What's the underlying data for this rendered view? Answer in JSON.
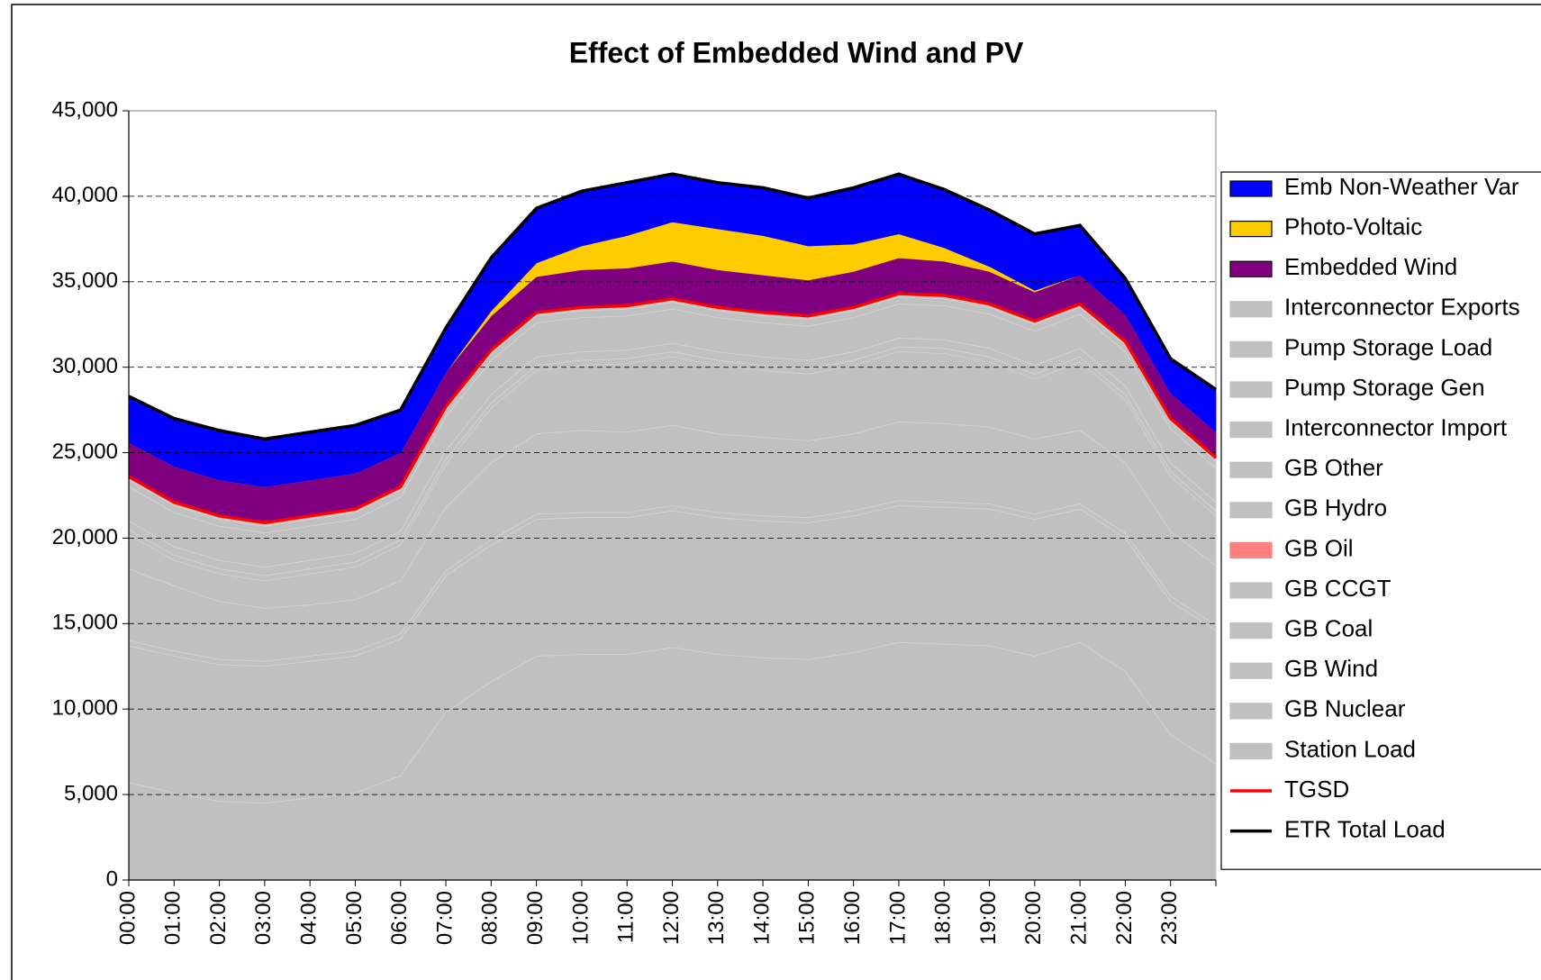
{
  "chart_data": {
    "type": "area",
    "title": "Effect of Embedded Wind and PV",
    "categories": [
      "00:00",
      "01:00",
      "02:00",
      "03:00",
      "04:00",
      "05:00",
      "06:00",
      "07:00",
      "08:00",
      "09:00",
      "10:00",
      "11:00",
      "12:00",
      "13:00",
      "14:00",
      "15:00",
      "16:00",
      "17:00",
      "18:00",
      "19:00",
      "20:00",
      "21:00",
      "22:00",
      "23:00",
      null
    ],
    "ylim": [
      0,
      45000
    ],
    "yticks": [
      0,
      {
        "value": 5000,
        "label": "5,000"
      },
      {
        "value": 10000,
        "label": "10,000"
      },
      {
        "value": 15000,
        "label": "15,000"
      },
      {
        "value": 20000,
        "label": "20,000"
      },
      {
        "value": 25000,
        "label": "25,000"
      },
      {
        "value": 30000,
        "label": "30,000"
      },
      {
        "value": 35000,
        "label": "35,000"
      },
      {
        "value": 40000,
        "label": "40,000"
      },
      {
        "value": 45000,
        "label": "45,000"
      }
    ],
    "grid": true,
    "legend": "right",
    "series": [
      {
        "name": "Emb Non-Weather Var",
        "type": "area",
        "color": "#0000ff",
        "values": [
          2700,
          2800,
          2900,
          2800,
          2800,
          2800,
          2500,
          2600,
          3100,
          3200,
          3200,
          3100,
          2800,
          2700,
          2800,
          2800,
          3300,
          3500,
          3400,
          3300,
          3300,
          2900,
          2100,
          2000,
          2500
        ]
      },
      {
        "name": "Photo-Voltaic",
        "type": "area",
        "color": "#ffcc00",
        "values": [
          0,
          0,
          0,
          0,
          0,
          0,
          0,
          0,
          300,
          800,
          1400,
          1900,
          2300,
          2400,
          2300,
          2000,
          1600,
          1400,
          800,
          300,
          100,
          0,
          0,
          0,
          0
        ]
      },
      {
        "name": "Embedded Wind",
        "type": "area",
        "color": "#800080",
        "values": [
          2000,
          2100,
          2100,
          2100,
          2100,
          2100,
          2000,
          2000,
          2000,
          2100,
          2200,
          2200,
          2200,
          2200,
          2200,
          2100,
          2100,
          2100,
          2000,
          1900,
          1700,
          1700,
          1600,
          1500,
          1500
        ]
      },
      {
        "name": "Interconnector Exports",
        "type": "area",
        "color": "#c0c0c0",
        "values": [
          0,
          0,
          0,
          0,
          0,
          0,
          0,
          0,
          0,
          0,
          0,
          0,
          0,
          0,
          0,
          0,
          0,
          0,
          0,
          0,
          0,
          0,
          0,
          0,
          0
        ]
      },
      {
        "name": "Pump Storage Load",
        "type": "area",
        "color": "#c0c0c0",
        "values": [
          200,
          200,
          200,
          200,
          200,
          200,
          200,
          200,
          200,
          200,
          200,
          200,
          200,
          200,
          200,
          200,
          200,
          200,
          200,
          200,
          200,
          200,
          200,
          200,
          200
        ]
      },
      {
        "name": "Pump Storage Gen",
        "type": "area",
        "color": "#c0c0c0",
        "values": [
          400,
          400,
          400,
          400,
          400,
          400,
          400,
          400,
          400,
          400,
          400,
          400,
          400,
          400,
          400,
          400,
          400,
          400,
          400,
          400,
          400,
          400,
          400,
          400,
          400
        ]
      },
      {
        "name": "Interconnector Import",
        "type": "area",
        "color": "#c0c0c0",
        "values": [
          2000,
          2000,
          2000,
          2000,
          2000,
          2000,
          2000,
          2000,
          2000,
          2000,
          2000,
          2000,
          2000,
          2000,
          2000,
          2000,
          2000,
          2000,
          2000,
          2000,
          2000,
          2000,
          2000,
          2000,
          2000
        ]
      },
      {
        "name": "GB Other",
        "type": "area",
        "color": "#c0c0c0",
        "values": [
          500,
          500,
          500,
          500,
          500,
          500,
          500,
          500,
          500,
          500,
          500,
          500,
          500,
          500,
          500,
          500,
          500,
          500,
          500,
          500,
          500,
          500,
          500,
          500,
          500
        ]
      },
      {
        "name": "GB Hydro",
        "type": "area",
        "color": "#c0c0c0",
        "values": [
          300,
          300,
          300,
          300,
          300,
          300,
          300,
          300,
          300,
          300,
          300,
          300,
          300,
          300,
          300,
          300,
          300,
          300,
          300,
          300,
          300,
          300,
          300,
          300,
          300
        ]
      },
      {
        "name": "GB Oil",
        "type": "area",
        "color": "#ff8080",
        "values": [
          0,
          0,
          0,
          0,
          0,
          0,
          0,
          0,
          0,
          0,
          0,
          0,
          0,
          0,
          0,
          0,
          0,
          0,
          0,
          0,
          0,
          0,
          0,
          0,
          0
        ]
      },
      {
        "name": "GB CCGT",
        "type": "area",
        "color": "#c0c0c0",
        "values": [
          2000,
          1500,
          1600,
          1600,
          1800,
          1900,
          2100,
          2500,
          3200,
          3700,
          3800,
          4000,
          4000,
          4000,
          3900,
          3900,
          4000,
          4100,
          4100,
          3800,
          3500,
          4000,
          3700,
          3200,
          2900
        ]
      },
      {
        "name": "GB Coal",
        "type": "area",
        "color": "#c0c0c0",
        "values": [
          4200,
          3800,
          3400,
          3100,
          3000,
          3000,
          3100,
          3700,
          4500,
          4700,
          4800,
          4700,
          4700,
          4600,
          4600,
          4500,
          4500,
          4600,
          4600,
          4500,
          4400,
          4300,
          4100,
          3800,
          3500
        ]
      },
      {
        "name": "GB Wind",
        "type": "area",
        "color": "#c0c0c0",
        "values": [
          300,
          300,
          300,
          300,
          300,
          300,
          300,
          300,
          300,
          300,
          300,
          300,
          300,
          300,
          300,
          300,
          300,
          300,
          300,
          300,
          300,
          300,
          300,
          300,
          300
        ]
      },
      {
        "name": "GB Nuclear",
        "type": "area",
        "color": "#c0c0c0",
        "values": [
          8000,
          8000,
          8000,
          8000,
          8000,
          8000,
          8000,
          8000,
          8000,
          8000,
          8000,
          8000,
          8000,
          8000,
          8000,
          8000,
          8000,
          8000,
          8000,
          8000,
          8000,
          7800,
          7800,
          7800,
          7800
        ]
      },
      {
        "name": "Station Load",
        "type": "area",
        "color": "#c0c0c0",
        "values": [
          5700,
          5100,
          4600,
          4500,
          4800,
          5100,
          6100,
          9800,
          11600,
          13100,
          13200,
          13200,
          13600,
          13200,
          13000,
          12900,
          13300,
          13900,
          13800,
          13700,
          13100,
          13900,
          12200,
          8500,
          6800
        ]
      },
      {
        "name": "TGSD",
        "type": "line",
        "color": "#ff0000",
        "values": [
          23600,
          22100,
          21300,
          20900,
          21300,
          21700,
          23000,
          27700,
          31000,
          33200,
          33500,
          33600,
          34000,
          33500,
          33200,
          33000,
          33500,
          34300,
          34200,
          33700,
          32700,
          33700,
          31500,
          27000,
          24700
        ]
      },
      {
        "name": "ETR Total Load",
        "type": "line",
        "color": "#000000",
        "values": [
          28300,
          27000,
          26300,
          25800,
          26200,
          26600,
          27500,
          32300,
          36400,
          39300,
          40300,
          40800,
          41300,
          40800,
          40500,
          39900,
          40500,
          41300,
          40400,
          39200,
          37800,
          38300,
          35200,
          30500,
          28700
        ]
      }
    ]
  }
}
